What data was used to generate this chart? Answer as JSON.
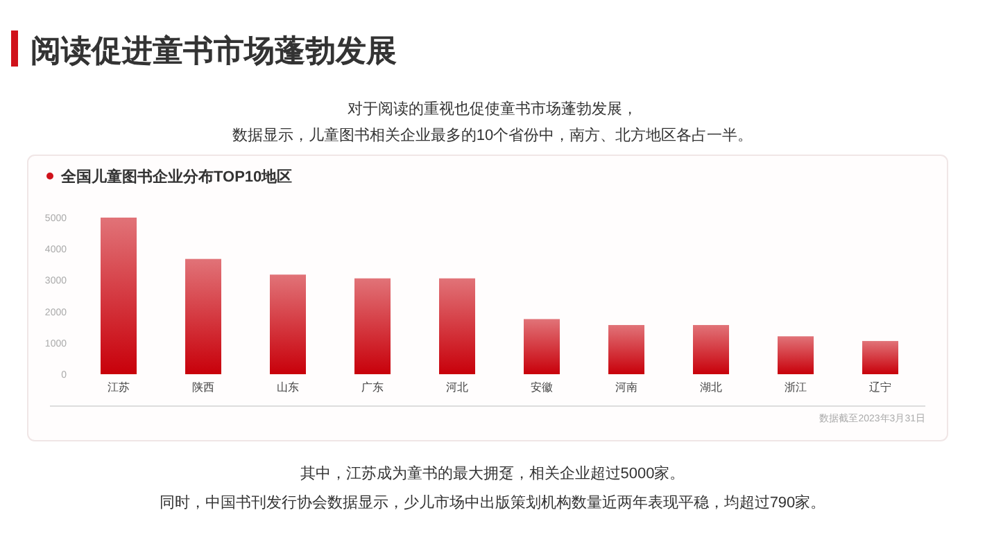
{
  "chart_data": {
    "type": "bar",
    "title": "阅读促进童书市场蓬勃发展",
    "subtitle": "全国儿童图书企业分布TOP10地区",
    "categories": [
      "江苏",
      "陕西",
      "山东",
      "广东",
      "河北",
      "安徽",
      "河南",
      "湖北",
      "浙江",
      "辽宁"
    ],
    "values": [
      5000,
      3680,
      3180,
      3060,
      3060,
      1760,
      1570,
      1570,
      1210,
      1060
    ],
    "color": "#c8000a",
    "ylim": [
      0,
      5000
    ],
    "yticks": [
      0,
      1000,
      2000,
      3000,
      4000,
      5000
    ],
    "grid": false,
    "annotations": [
      "对于阅读的重视也促使童书市场蓬勃发展，",
      "数据显示，儿童图书相关企业最多的10个省份中，南方、北方地区各占一半。",
      "数据截至2023年3月31日",
      "其中，江苏成为童书的最大拥趸，相关企业超过5000家。",
      "同时，中国书刊发行协会数据显示，少儿市场中出版策划机构数量近两年表现平稳，均超过790家。"
    ]
  }
}
